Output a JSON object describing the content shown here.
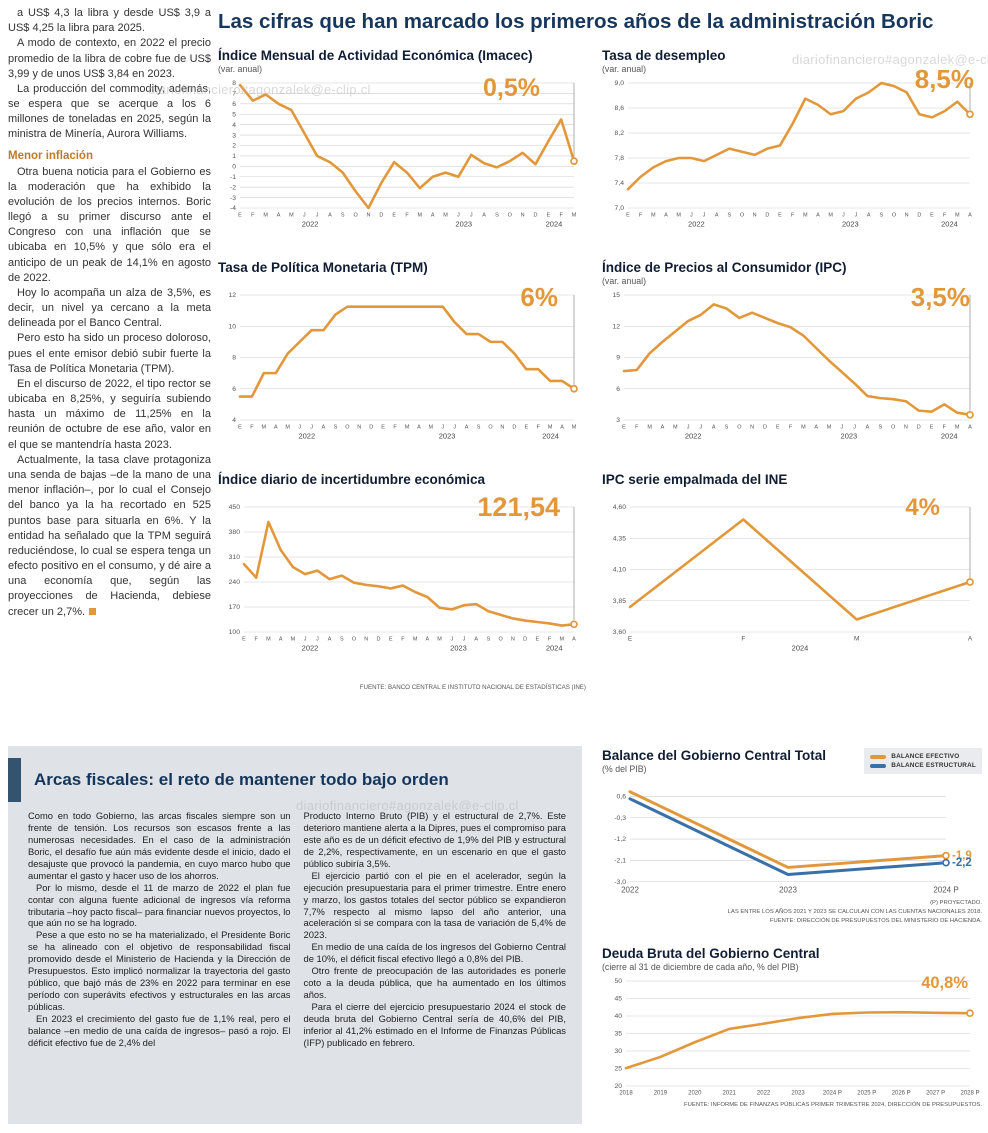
{
  "main_title": "Las cifras que han marcado los primeros años de la administración Boric",
  "watermark": "diariofinanciero#agonzalek@e-clip.cl",
  "source_note": "FUENTE: BANCO CENTRAL E INSTITUTO NACIONAL DE ESTADÍSTICAS (INE)",
  "colors": {
    "accent_orange": "#E2983A",
    "accent_blue": "#3A70A8",
    "navy": "#16365C"
  },
  "left_article": {
    "paragraphs_1": [
      "a US$ 4,3 la libra y desde US$ 3,9 a US$ 4,25 la libra para 2025.",
      "A modo de contexto, en 2022 el precio promedio de la libra de cobre fue de US$ 3,99 y de unos US$ 3,84 en 2023.",
      "La producción del commodity, además, se espera que se acerque a los 6 millones de toneladas en 2025, según la ministra de Minería, Aurora Williams."
    ],
    "subhead": "Menor inflación",
    "paragraphs_2": [
      "Otra buena noticia para el Gobierno es la moderación que ha exhibido la evolución de los precios internos. Boric llegó a su primer discurso ante el Congreso con una inflación que se ubicaba en 10,5% y que sólo era el anticipo de un peak de 14,1% en agosto de 2022.",
      "Hoy lo acompaña un alza de 3,5%, es decir, un nivel ya cercano a la meta delineada por el Banco Central.",
      "Pero esto ha sido un proceso doloroso, pues el ente emisor debió subir fuerte la Tasa de Política Monetaria (TPM).",
      "En el discurso de 2022, el tipo rector se ubicaba en 8,25%, y seguiría subiendo hasta un máximo de 11,25% en la reunión de octubre de ese año, valor en el que se mantendría hasta 2023."
    ],
    "closing_paragraph": "Actualmente, la tasa clave protagoniza una senda de bajas –de la mano de una menor inflación–, por lo cual el Consejo del banco ya la ha recortado en 525 puntos base para situarla en 6%. Y la entidad ha señalado que la TPM seguirá reduciéndose, lo cual se espera tenga un efecto positivo en el consumo, y dé aire a una economía que, según las proyecciones de Hacienda, debiese crecer un 2,7%."
  },
  "fiscal_box": {
    "title": "Arcas fiscales: el reto de mantener todo bajo orden",
    "col1": [
      "Como en todo Gobierno, las arcas fiscales siempre son un frente de tensión. Los recursos son escasos frente a las numerosas necesidades. En el caso de la administración Boric, el desafío fue aún más evidente desde el inicio, dado el desajuste que provocó la pandemia, en cuyo marco hubo que aumentar el gasto y hacer uso de los ahorros.",
      "Por lo mismo, desde el 11 de marzo de 2022 el plan fue contar con alguna fuente adicional de ingresos vía reforma tributaria –hoy pacto fiscal– para financiar nuevos proyectos, lo que aún no se ha logrado.",
      "Pese a que esto no se ha materializado, el Presidente Boric se ha alineado con el objetivo de responsabilidad fiscal promovido desde el Ministerio de Hacienda y la Dirección de Presupuestos. Esto implicó normalizar la trayectoria del gasto público, que bajó más de 23% en 2022 para terminar en ese período con superávits efectivos y estructurales en las arcas públicas.",
      "En 2023 el crecimiento del gasto fue de 1,1% real, pero el balance –en medio de una caída de ingresos– pasó a rojo. El déficit efectivo fue de 2,4% del"
    ],
    "col2": [
      "Producto Interno Bruto (PIB) y el estructural de 2,7%. Este deterioro mantiene alerta a la Dipres, pues el compromiso para este año es de un déficit efectivo de 1,9% del PIB y estructural de 2,2%, respectivamente, en un escenario en que el gasto público subiría 3,5%.",
      "El ejercicio partió con el pie en el acelerador, según la ejecución presupuestaria para el primer trimestre. Entre enero y marzo, los gastos totales del sector público se expandieron 7,7% respecto al mismo lapso del año anterior, una aceleración si se compara con la tasa de variación de 5,4% de 2023.",
      "En medio de una caída de los ingresos del Gobierno Central de 10%, el déficit fiscal efectivo llegó a 0,8% del PIB.",
      "Otro frente de preocupación de las autoridades es ponerle coto a la deuda pública, que ha aumentado en los últimos años.",
      "Para el cierre del ejercicio presupuestario 2024 el stock de deuda bruta del Gobierno Central sería de 40,6% del PIB, inferior al 41,2% estimado en el Informe de Finanzas Públicas (IFP) publicado en febrero."
    ]
  },
  "chart_data": [
    {
      "type": "line",
      "title": "Índice Mensual de Actividad Económica (Imacec)",
      "subtitle": "(var. anual)",
      "value_label": "0,5%",
      "ymin": -4,
      "ymax": 8,
      "ml": 22,
      "yticks": [
        [
          8,
          "8"
        ],
        [
          7,
          "7"
        ],
        [
          6,
          "6"
        ],
        [
          5,
          "5"
        ],
        [
          4,
          "4"
        ],
        [
          3,
          "3"
        ],
        [
          2,
          "2"
        ],
        [
          1,
          "1"
        ],
        [
          0,
          "0"
        ],
        [
          -1,
          "-1"
        ],
        [
          -2,
          "-2"
        ],
        [
          -3,
          "-3"
        ],
        [
          -4,
          "-4"
        ]
      ],
      "x": [
        "E",
        "F",
        "M",
        "A",
        "M",
        "J",
        "J",
        "A",
        "S",
        "O",
        "N",
        "D",
        "E",
        "F",
        "M",
        "A",
        "M",
        "J",
        "J",
        "A",
        "S",
        "O",
        "N",
        "D",
        "E",
        "F",
        "M"
      ],
      "years": [
        [
          "2022",
          0.21
        ],
        [
          "2023",
          0.67
        ],
        [
          "2024",
          0.94
        ]
      ],
      "series": [
        {
          "name": "Imacec var. anual",
          "color": "#E2983A",
          "end_line": true,
          "values": [
            7.8,
            6.3,
            6.9,
            6.0,
            5.4,
            3.2,
            1.0,
            0.4,
            -0.6,
            -2.4,
            -4.0,
            -1.6,
            0.4,
            -0.6,
            -2.1,
            -1.0,
            -0.6,
            -1.0,
            1.1,
            0.3,
            -0.1,
            0.5,
            1.3,
            0.2,
            2.4,
            4.5,
            0.5
          ]
        }
      ]
    },
    {
      "type": "line",
      "title": "Tasa de desempleo",
      "subtitle": "(var. anual)",
      "value_label": "8,5%",
      "ymin": 7.0,
      "ymax": 9.0,
      "ml": 26,
      "yticks": [
        [
          9.0,
          "9,0"
        ],
        [
          8.6,
          "8,6"
        ],
        [
          8.2,
          "8,2"
        ],
        [
          7.8,
          "7,8"
        ],
        [
          7.4,
          "7,4"
        ],
        [
          7.0,
          "7,0"
        ]
      ],
      "x": [
        "E",
        "F",
        "M",
        "A",
        "M",
        "J",
        "J",
        "A",
        "S",
        "O",
        "N",
        "D",
        "E",
        "F",
        "M",
        "A",
        "M",
        "J",
        "J",
        "A",
        "S",
        "O",
        "N",
        "D",
        "E",
        "F",
        "M",
        "A"
      ],
      "years": [
        [
          "2022",
          0.2
        ],
        [
          "2023",
          0.65
        ],
        [
          "2024",
          0.94
        ]
      ],
      "series": [
        {
          "name": "Tasa de desempleo",
          "color": "#E2983A",
          "end_line": true,
          "values": [
            7.3,
            7.5,
            7.65,
            7.75,
            7.8,
            7.8,
            7.75,
            7.85,
            7.95,
            7.9,
            7.85,
            7.95,
            8.0,
            8.35,
            8.75,
            8.65,
            8.5,
            8.55,
            8.75,
            8.85,
            9.0,
            8.95,
            8.85,
            8.5,
            8.45,
            8.55,
            8.7,
            8.5
          ]
        }
      ]
    },
    {
      "type": "line",
      "title": "Tasa de Política Monetaria (TPM)",
      "value_label": "6%",
      "ymin": 4,
      "ymax": 12,
      "ml": 22,
      "yticks": [
        [
          12,
          "12"
        ],
        [
          10,
          "10"
        ],
        [
          8,
          "8"
        ],
        [
          6,
          "6"
        ],
        [
          4,
          "4"
        ]
      ],
      "x": [
        "E",
        "F",
        "M",
        "A",
        "M",
        "J",
        "J",
        "A",
        "S",
        "O",
        "N",
        "D",
        "E",
        "F",
        "M",
        "A",
        "M",
        "J",
        "J",
        "A",
        "S",
        "O",
        "N",
        "D",
        "E",
        "F",
        "M",
        "A",
        "M"
      ],
      "years": [
        [
          "2022",
          0.2
        ],
        [
          "2023",
          0.62
        ],
        [
          "2024",
          0.93
        ]
      ],
      "series": [
        {
          "name": "TPM",
          "color": "#E2983A",
          "end_line": true,
          "values": [
            5.5,
            5.5,
            7.0,
            7.0,
            8.25,
            9.0,
            9.75,
            9.75,
            10.75,
            11.25,
            11.25,
            11.25,
            11.25,
            11.25,
            11.25,
            11.25,
            11.25,
            11.25,
            10.25,
            9.5,
            9.5,
            9.0,
            9.0,
            8.25,
            7.25,
            7.25,
            6.5,
            6.5,
            6.0
          ]
        }
      ]
    },
    {
      "type": "line",
      "title": "Índice de Precios al Consumidor (IPC)",
      "subtitle": "(var. anual)",
      "value_label": "3,5%",
      "ymin": 3,
      "ymax": 15,
      "ml": 22,
      "yticks": [
        [
          15,
          "15"
        ],
        [
          12,
          "12"
        ],
        [
          9,
          "9"
        ],
        [
          6,
          "6"
        ],
        [
          3,
          "3"
        ]
      ],
      "x": [
        "E",
        "F",
        "M",
        "A",
        "M",
        "J",
        "J",
        "A",
        "S",
        "O",
        "N",
        "D",
        "E",
        "F",
        "M",
        "A",
        "M",
        "J",
        "J",
        "A",
        "S",
        "O",
        "N",
        "D",
        "E",
        "F",
        "M",
        "A"
      ],
      "years": [
        [
          "2022",
          0.2
        ],
        [
          "2023",
          0.65
        ],
        [
          "2024",
          0.94
        ]
      ],
      "series": [
        {
          "name": "IPC var. anual",
          "color": "#E2983A",
          "end_line": true,
          "values": [
            7.7,
            7.8,
            9.4,
            10.5,
            11.5,
            12.5,
            13.1,
            14.1,
            13.7,
            12.8,
            13.3,
            12.8,
            12.3,
            11.9,
            11.1,
            9.9,
            8.7,
            7.6,
            6.5,
            5.3,
            5.1,
            5.0,
            4.8,
            3.9,
            3.8,
            4.5,
            3.7,
            3.5
          ]
        }
      ]
    },
    {
      "type": "line",
      "title": "Índice diario de incertidumbre económica",
      "value_label": "121,54",
      "ymin": 100,
      "ymax": 450,
      "ml": 26,
      "yticks": [
        [
          450,
          "450"
        ],
        [
          380,
          "380"
        ],
        [
          310,
          "310"
        ],
        [
          240,
          "240"
        ],
        [
          170,
          "170"
        ],
        [
          100,
          "100"
        ]
      ],
      "x": [
        "E",
        "F",
        "M",
        "A",
        "M",
        "J",
        "J",
        "A",
        "S",
        "O",
        "N",
        "D",
        "E",
        "F",
        "M",
        "A",
        "M",
        "J",
        "J",
        "A",
        "S",
        "O",
        "N",
        "D",
        "E",
        "F",
        "M",
        "A"
      ],
      "years": [
        [
          "2022",
          0.2
        ],
        [
          "2023",
          0.65
        ],
        [
          "2024",
          0.94
        ]
      ],
      "series": [
        {
          "name": "Incertidumbre económica",
          "color": "#E2983A",
          "end_line": true,
          "values": [
            290,
            252,
            408,
            330,
            282,
            262,
            272,
            248,
            258,
            238,
            232,
            228,
            222,
            230,
            212,
            198,
            168,
            163,
            175,
            178,
            158,
            148,
            138,
            132,
            128,
            124,
            118,
            121.54
          ]
        }
      ]
    },
    {
      "type": "line",
      "title": "IPC serie empalmada del INE",
      "value_label": "4%",
      "ymin": 3.6,
      "ymax": 4.6,
      "ml": 28,
      "xfs": 6.5,
      "yticks": [
        [
          4.6,
          "4,60"
        ],
        [
          4.35,
          "4,35"
        ],
        [
          4.1,
          "4,10"
        ],
        [
          3.85,
          "3,85"
        ],
        [
          3.6,
          "3,60"
        ]
      ],
      "x": [
        "E",
        "F",
        "M",
        "A"
      ],
      "years": [
        [
          "2024",
          0.5
        ]
      ],
      "series": [
        {
          "name": "IPC serie empalmada",
          "color": "#E2983A",
          "end_line": true,
          "values": [
            3.8,
            4.5,
            3.7,
            4.0
          ]
        }
      ]
    },
    {
      "type": "line",
      "title": "Balance del Gobierno Central Total",
      "subtitle": "(% del PIB)",
      "ymin": -3.1,
      "ymax": 1.0,
      "ml": 28,
      "mr": 36,
      "xfs": 8,
      "lw": 3,
      "yticks": [
        [
          0.6,
          "0,6"
        ],
        [
          -0.3,
          "-0,3"
        ],
        [
          -1.2,
          "-1,2"
        ],
        [
          -2.1,
          "-2,1"
        ],
        [
          -3.0,
          "-3,0"
        ]
      ],
      "x": [
        "2022",
        "2023",
        "2024 P"
      ],
      "legend": [
        {
          "label": "BALANCE EFECTIVO",
          "color": "#E2983A"
        },
        {
          "label": "BALANCE ESTRUCTURAL",
          "color": "#3A70A8"
        }
      ],
      "series": [
        {
          "name": "Balance efectivo",
          "color": "#E2983A",
          "end_label": "-1,9",
          "values": [
            0.8,
            -2.4,
            -1.9
          ]
        },
        {
          "name": "Balance estructural",
          "color": "#3A70A8",
          "end_label": "-2,2",
          "values": [
            0.5,
            -2.7,
            -2.2
          ]
        }
      ],
      "footnotes": [
        "(P) PROYECTADO.",
        "LAS ENTRE LOS AÑOS 2021 Y 2023 SE CALCULAN CON LAS CUENTAS NACIONALES 2018.",
        "FUENTE: DIRECCIÓN DE PRESUPUESTOS DEL MINISTERIO DE HACIENDA."
      ]
    },
    {
      "type": "line",
      "title": "Deuda Bruta del Gobierno Central",
      "subtitle": "(cierre al 31 de diciembre de cada año, % del PIB)",
      "value_label": "40,8%",
      "ymin": 20,
      "ymax": 50,
      "ml": 24,
      "xfs": 6,
      "yticks": [
        [
          50,
          "50"
        ],
        [
          45,
          "45"
        ],
        [
          40,
          "40"
        ],
        [
          35,
          "35"
        ],
        [
          30,
          "30"
        ],
        [
          25,
          "25"
        ],
        [
          20,
          "20"
        ]
      ],
      "x": [
        "2018",
        "2019",
        "2020",
        "2021",
        "2022",
        "2023",
        "2024 P",
        "2025 P",
        "2026 P",
        "2027 P",
        "2028 P"
      ],
      "series": [
        {
          "name": "Deuda bruta % PIB",
          "color": "#E2983A",
          "end_line": false,
          "values": [
            25.1,
            28.3,
            32.5,
            36.3,
            37.8,
            39.4,
            40.6,
            41.0,
            41.1,
            40.9,
            40.8
          ]
        }
      ],
      "footnotes": [
        "FUENTE: INFORME DE FINANZAS PÚBLICAS PRIMER TRIMESTRE 2024, DIRECCIÓN DE PRESUPUESTOS."
      ]
    }
  ]
}
